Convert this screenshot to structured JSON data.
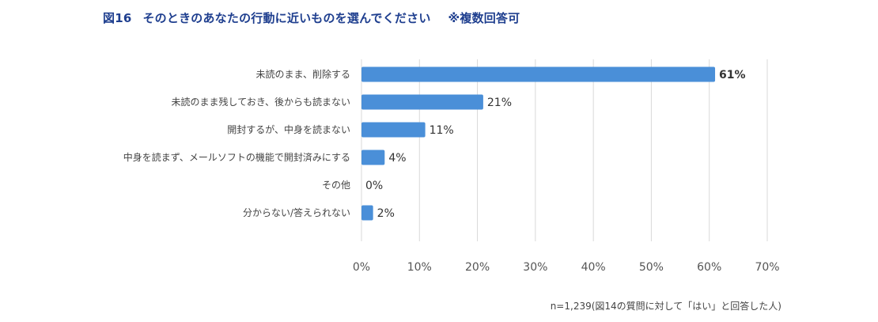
{
  "title": {
    "number": "図16",
    "text": "そのときのあなたの行動に近いものを選んでください",
    "note": "※複数回答可"
  },
  "colors": {
    "bar": "#4a8fd8",
    "grid": "#d9d9d9",
    "title": "#1f3f8f",
    "text": "#444444"
  },
  "chart_data": {
    "type": "bar",
    "orientation": "horizontal",
    "categories": [
      "未読のまま、削除する",
      "未読のまま残しておき、後からも読まない",
      "開封するが、中身を読まない",
      "中身を読まず、メールソフトの機能で開封済みにする",
      "その他",
      "分からない/答えられない"
    ],
    "values": [
      61,
      21,
      11,
      4,
      0,
      2
    ],
    "value_labels": [
      "61%",
      "21%",
      "11%",
      "4%",
      "0%",
      "2%"
    ],
    "xlim": [
      0,
      70
    ],
    "xticks": [
      0,
      10,
      20,
      30,
      40,
      50,
      60,
      70
    ],
    "xtick_labels": [
      "0%",
      "10%",
      "20%",
      "30%",
      "40%",
      "50%",
      "60%",
      "70%"
    ],
    "grid": true,
    "legend": "none"
  },
  "footnote": "n=1,239(図14の質問に対して「はい」と回答した人)"
}
